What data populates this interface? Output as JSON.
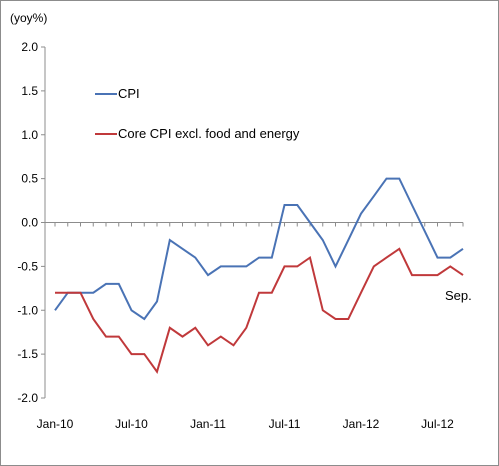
{
  "chart_data": {
    "type": "line",
    "ylabel": "(yoy%)",
    "ylim": [
      -2.0,
      2.0
    ],
    "y_ticks": [
      "2.0",
      "1.5",
      "1.0",
      "0.5",
      "0.0",
      "-0.5",
      "-1.0",
      "-1.5",
      "-2.0"
    ],
    "x_tick_labels": [
      "Jan-10",
      "Jul-10",
      "Jan-11",
      "Jul-11",
      "Jan-12",
      "Jul-12"
    ],
    "x": [
      "Jan-10",
      "Feb-10",
      "Mar-10",
      "Apr-10",
      "May-10",
      "Jun-10",
      "Jul-10",
      "Aug-10",
      "Sep-10",
      "Oct-10",
      "Nov-10",
      "Dec-10",
      "Jan-11",
      "Feb-11",
      "Mar-11",
      "Apr-11",
      "May-11",
      "Jun-11",
      "Jul-11",
      "Aug-11",
      "Sep-11",
      "Oct-11",
      "Nov-11",
      "Dec-11",
      "Jan-12",
      "Feb-12",
      "Mar-12",
      "Apr-12",
      "May-12",
      "Jun-12",
      "Jul-12",
      "Aug-12",
      "Sep-12"
    ],
    "series": [
      {
        "name": "CPI",
        "color": "#4a73b5",
        "values": [
          -1.0,
          -0.8,
          -0.8,
          -0.8,
          -0.7,
          -0.7,
          -1.0,
          -1.1,
          -0.9,
          -0.2,
          -0.3,
          -0.4,
          -0.6,
          -0.5,
          -0.5,
          -0.5,
          -0.4,
          -0.4,
          0.2,
          0.2,
          0.0,
          -0.2,
          -0.5,
          -0.2,
          0.1,
          0.3,
          0.5,
          0.5,
          0.2,
          -0.1,
          -0.4,
          -0.4,
          -0.3
        ]
      },
      {
        "name": "Core CPI excl. food and energy",
        "color": "#c0393b",
        "values": [
          -0.8,
          -0.8,
          -0.8,
          -1.1,
          -1.3,
          -1.3,
          -1.5,
          -1.5,
          -1.7,
          -1.2,
          -1.3,
          -1.2,
          -1.4,
          -1.3,
          -1.4,
          -1.2,
          -0.8,
          -0.8,
          -0.5,
          -0.5,
          -0.4,
          -1.0,
          -1.1,
          -1.1,
          -0.8,
          -0.5,
          -0.4,
          -0.3,
          -0.6,
          -0.6,
          -0.6,
          -0.5,
          -0.6
        ]
      }
    ],
    "annotation": "Sep.",
    "grid": false,
    "legend_position": "top-left inside"
  }
}
